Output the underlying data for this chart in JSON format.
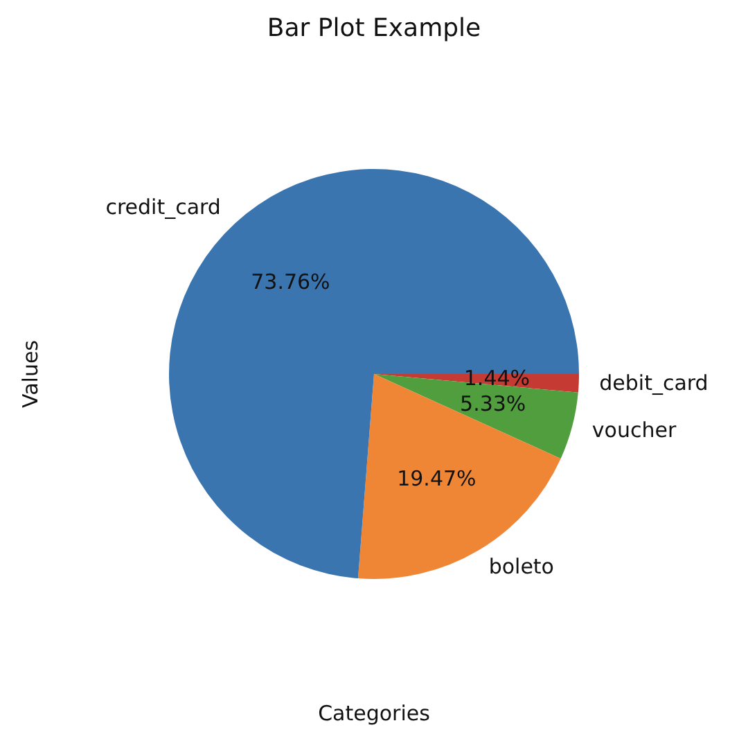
{
  "chart_data": {
    "type": "pie",
    "title": "Bar Plot Example",
    "xlabel": "Categories",
    "ylabel": "Values",
    "categories": [
      "debit_card",
      "voucher",
      "boleto",
      "credit_card"
    ],
    "values": [
      1.44,
      5.33,
      19.47,
      73.76
    ],
    "colors": [
      "#c53a32",
      "#519e3e",
      "#ef8636",
      "#3a75b0"
    ],
    "value_labels": [
      "1.44%",
      "5.33%",
      "19.47%",
      "73.76%"
    ]
  }
}
